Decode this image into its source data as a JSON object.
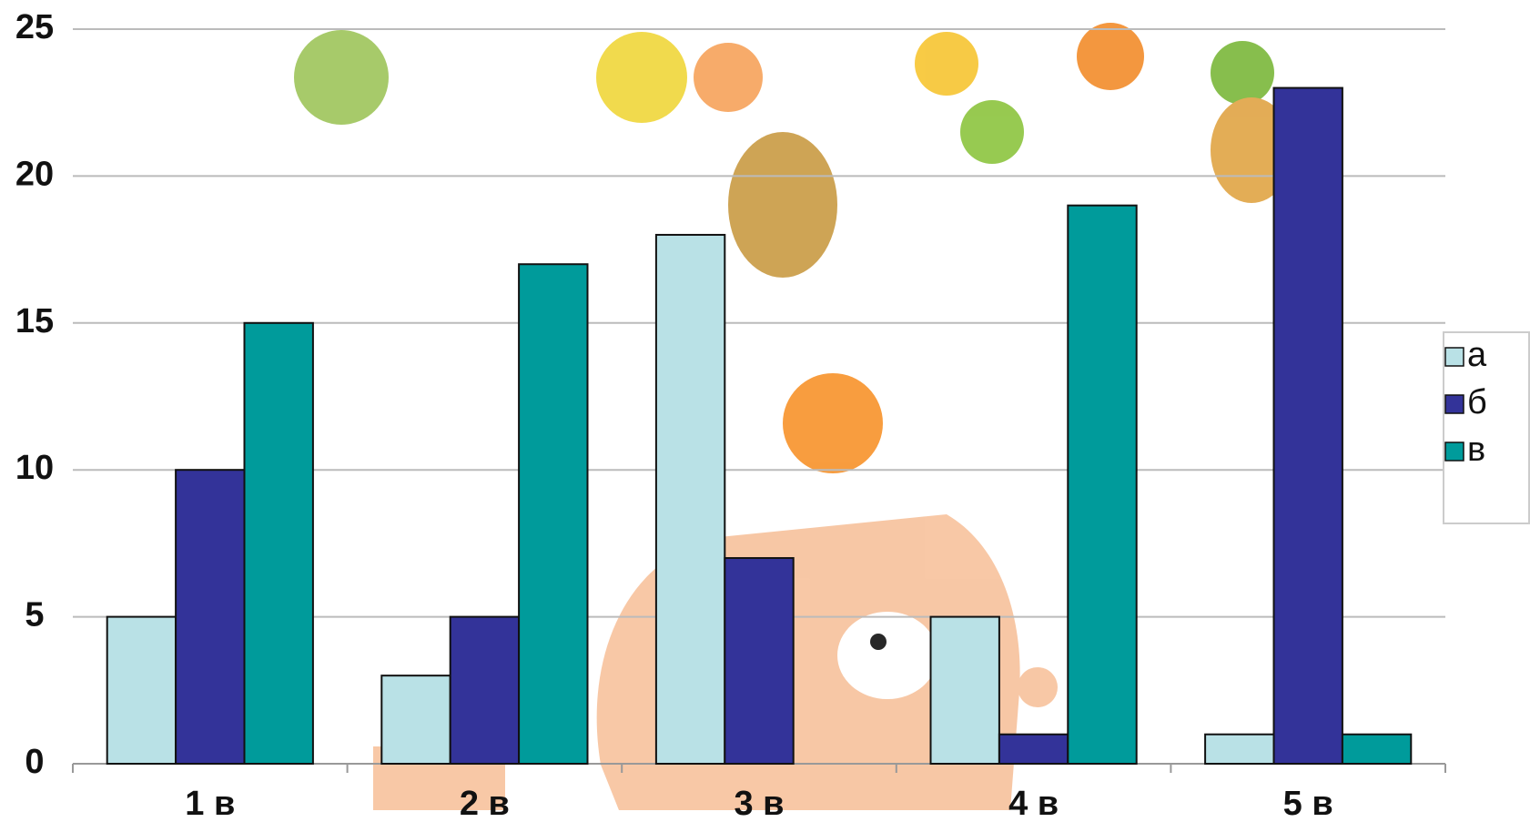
{
  "chart_data": {
    "type": "bar",
    "categories": [
      "1 в",
      "2 в",
      "3 в",
      "4 в",
      "5 в"
    ],
    "series": [
      {
        "name": "а",
        "color": "#b9e1e6",
        "values": [
          5,
          3,
          18,
          5,
          1
        ]
      },
      {
        "name": "б",
        "color": "#333399",
        "values": [
          10,
          5,
          7,
          1,
          23
        ]
      },
      {
        "name": "в",
        "color": "#009b9b",
        "values": [
          15,
          17,
          0,
          19,
          1
        ]
      }
    ],
    "ylim": [
      0,
      25
    ],
    "yticks": [
      0,
      5,
      10,
      15,
      20,
      25
    ],
    "grid": true,
    "legend": "right"
  }
}
